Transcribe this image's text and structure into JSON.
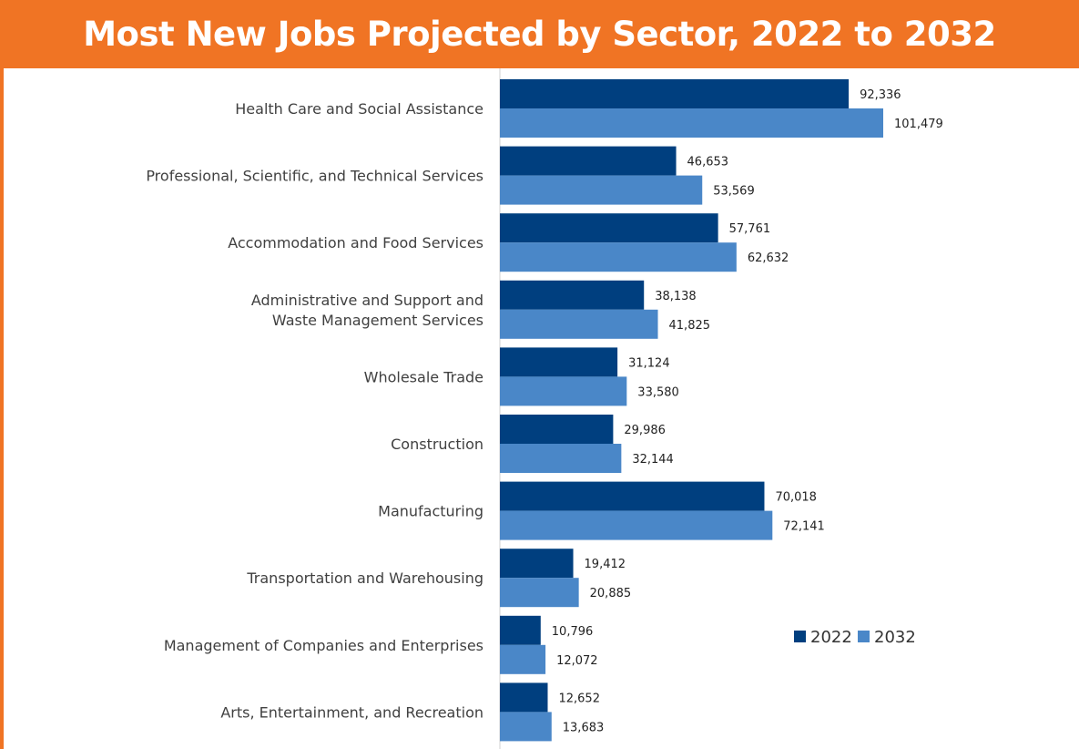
{
  "header": {
    "title": "Most New Jobs Projected by Sector, 2022 to 2032"
  },
  "colors": {
    "header_bg": "#f07424",
    "series_2022": "#003f7f",
    "series_2032": "#4a87c8"
  },
  "chart_data": {
    "type": "bar",
    "orientation": "horizontal",
    "title": "Most New Jobs Projected by Sector, 2022 to 2032",
    "categories": [
      [
        "Health Care and Social Assistance"
      ],
      [
        "Professional, Scientific, and Technical Services"
      ],
      [
        "Accommodation and Food Services"
      ],
      [
        "Administrative and Support and",
        "Waste Management Services"
      ],
      [
        "Wholesale Trade"
      ],
      [
        "Construction"
      ],
      [
        "Manufacturing"
      ],
      [
        "Transportation and Warehousing"
      ],
      [
        "Management of Companies and Enterprises"
      ],
      [
        "Arts, Entertainment, and Recreation"
      ]
    ],
    "series": [
      {
        "name": "2022",
        "color": "#003f7f",
        "values": [
          92336,
          46653,
          57761,
          38138,
          31124,
          29986,
          70018,
          19412,
          10796,
          12652
        ],
        "labels": [
          "92,336",
          "46,653",
          "57,761",
          "38,138",
          "31,124",
          "29,986",
          "70,018",
          "19,412",
          "10,796",
          "12,652"
        ]
      },
      {
        "name": "2032",
        "color": "#4a87c8",
        "values": [
          101479,
          53569,
          62632,
          41825,
          33580,
          32144,
          72141,
          20885,
          12072,
          13683
        ],
        "labels": [
          "101,479",
          "53,569",
          "62,632",
          "41,825",
          "33,580",
          "32,144",
          "72,141",
          "20,885",
          "12,072",
          "13,683"
        ]
      }
    ],
    "xlim": [
      0,
      140000
    ],
    "grid": false,
    "legend": "bottom-right"
  }
}
